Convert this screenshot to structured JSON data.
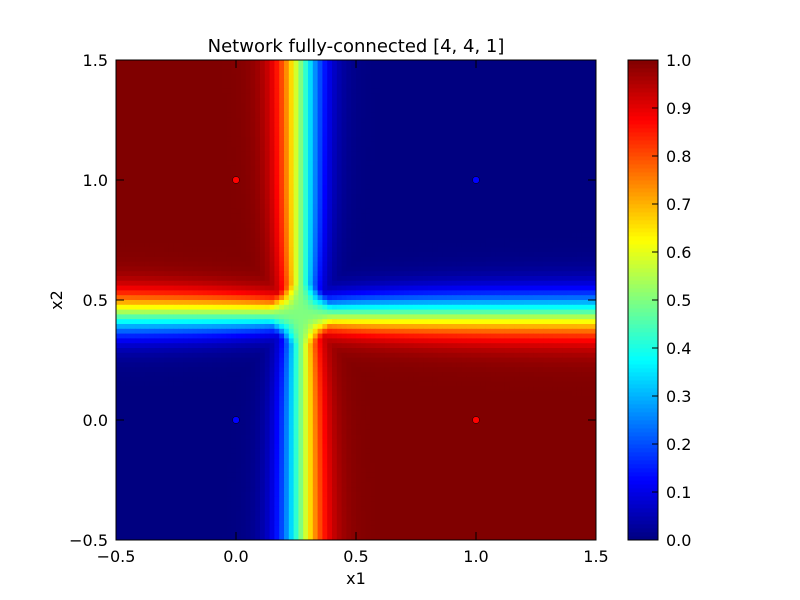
{
  "chart_data": {
    "type": "heatmap",
    "title": "Network fully-connected [4, 4, 1]",
    "xlabel": "x1",
    "ylabel": "x2",
    "xlim": [
      -0.5,
      1.5
    ],
    "ylim": [
      -0.5,
      1.5
    ],
    "xticks": [
      "−0.5",
      "0.0",
      "0.5",
      "1.0",
      "1.5"
    ],
    "yticks": [
      "−0.5",
      "0.0",
      "0.5",
      "1.0",
      "1.5"
    ],
    "xtick_values": [
      -0.5,
      0.0,
      0.5,
      1.0,
      1.5
    ],
    "ytick_values": [
      -0.5,
      0.0,
      0.5,
      1.0,
      1.5
    ],
    "colormap": "jet",
    "color_range": [
      0.0,
      1.0
    ],
    "colorbar_ticks": [
      "0.0",
      "0.1",
      "0.2",
      "0.3",
      "0.4",
      "0.5",
      "0.6",
      "0.7",
      "0.8",
      "0.9",
      "1.0"
    ],
    "colorbar_tick_values": [
      0.0,
      0.1,
      0.2,
      0.3,
      0.4,
      0.5,
      0.6,
      0.7,
      0.8,
      0.9,
      1.0
    ],
    "regions": [
      {
        "description": "upper-left region, output ≈ 1.0",
        "value": 1.0
      },
      {
        "description": "lower-right region, output ≈ 1.0",
        "value": 1.0
      },
      {
        "description": "upper-right region, output ≈ 0.0",
        "value": 0.0
      },
      {
        "description": "lower-left region, output ≈ 0.0",
        "value": 0.0
      }
    ],
    "points": [
      {
        "x1": 0.0,
        "x2": 1.0,
        "label": 1,
        "color": "#ff0000"
      },
      {
        "x1": 1.0,
        "x2": 1.0,
        "label": 0,
        "color": "#0000ff"
      },
      {
        "x1": 0.0,
        "x2": 0.0,
        "label": 0,
        "color": "#0000ff"
      },
      {
        "x1": 1.0,
        "x2": 0.0,
        "label": 1,
        "color": "#ff0000"
      }
    ]
  }
}
